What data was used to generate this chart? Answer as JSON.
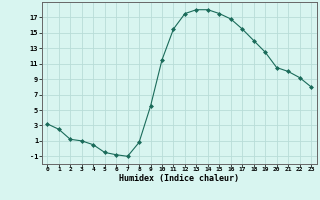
{
  "x": [
    0,
    1,
    2,
    3,
    4,
    5,
    6,
    7,
    8,
    9,
    10,
    11,
    12,
    13,
    14,
    15,
    16,
    17,
    18,
    19,
    20,
    21,
    22,
    23
  ],
  "y": [
    3.2,
    2.5,
    1.2,
    1.0,
    0.5,
    -0.5,
    -0.8,
    -1.0,
    0.8,
    5.5,
    11.5,
    15.5,
    17.5,
    18.0,
    18.0,
    17.5,
    16.8,
    15.5,
    14.0,
    12.5,
    10.5,
    10.0,
    9.2,
    8.0
  ],
  "xlabel": "Humidex (Indice chaleur)",
  "xlim": [
    -0.5,
    23.5
  ],
  "ylim": [
    -2,
    19
  ],
  "yticks": [
    -1,
    1,
    3,
    5,
    7,
    9,
    11,
    13,
    15,
    17
  ],
  "xticks": [
    0,
    1,
    2,
    3,
    4,
    5,
    6,
    7,
    8,
    9,
    10,
    11,
    12,
    13,
    14,
    15,
    16,
    17,
    18,
    19,
    20,
    21,
    22,
    23
  ],
  "line_color": "#1a6b5a",
  "marker": "D",
  "marker_size": 2,
  "bg_color": "#d8f5f0",
  "grid_color": "#b8ddd8"
}
